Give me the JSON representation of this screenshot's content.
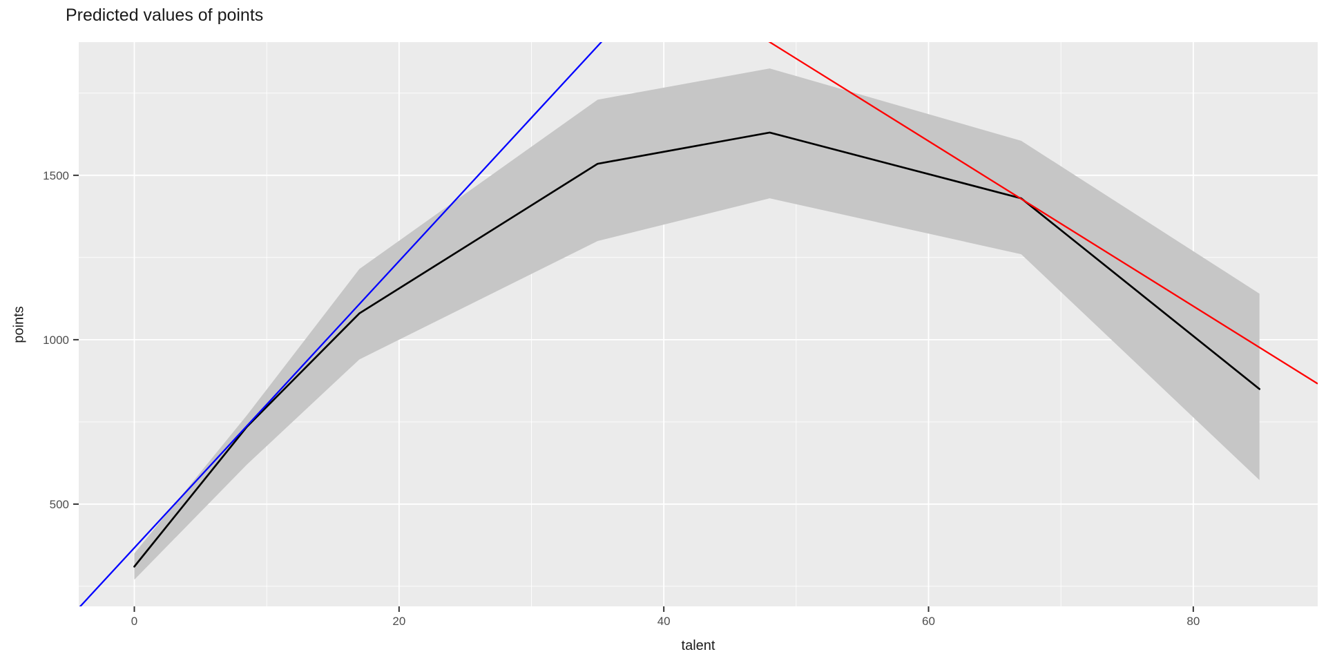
{
  "chart_data": {
    "type": "line",
    "title": "Predicted values of points",
    "xlabel": "talent",
    "ylabel": "points",
    "xlim": [
      -4.2,
      89.4
    ],
    "ylim": [
      189,
      1905
    ],
    "grid": true,
    "legend_position": "none",
    "panel_background": "#EBEBEB",
    "grid_color": "#FFFFFF",
    "tick_color": "#333333",
    "tick_label_color": "#4D4D4D",
    "x_ticks": [
      0,
      20,
      40,
      60,
      80
    ],
    "x_minor_ticks": [
      10,
      30,
      50,
      70
    ],
    "y_ticks": [
      500,
      1000,
      1500
    ],
    "y_minor_ticks": [
      250,
      750,
      1250,
      1750
    ],
    "series": [
      {
        "name": "predicted-fit",
        "kind": "line_with_ribbon",
        "color": "#000000",
        "ribbon_color": "#C6C6C6",
        "x": [
          0,
          8.5,
          17,
          35,
          48,
          67,
          85
        ],
        "y": [
          310,
          735,
          1080,
          1535,
          1630,
          1430,
          850
        ],
        "ribbon_lower": [
          270,
          620,
          940,
          1300,
          1430,
          1260,
          573
        ],
        "ribbon_upper": [
          350,
          770,
          1215,
          1730,
          1825,
          1605,
          1140
        ]
      },
      {
        "name": "blue-tangent-line",
        "kind": "abline",
        "color": "#0000FF",
        "slope": 43.6,
        "intercept": 367
      },
      {
        "name": "red-tangent-line",
        "kind": "abline",
        "color": "#FF0000",
        "slope": -25.1,
        "intercept": 3110
      }
    ]
  }
}
